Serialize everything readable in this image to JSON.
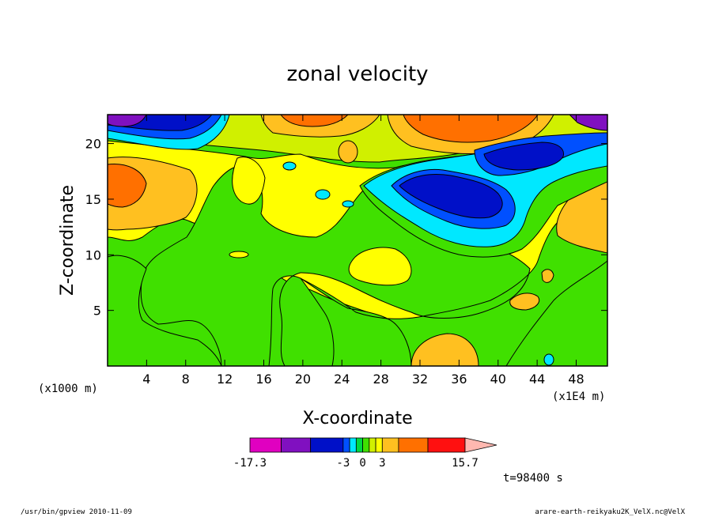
{
  "chart_data": {
    "type": "heatmap",
    "title": "zonal velocity",
    "xlabel": "X-coordinate",
    "ylabel": "Z-coordinate",
    "x_unit": "(x1E4 m)",
    "y_unit": "(x1000 m)",
    "xlim": [
      0,
      51.2
    ],
    "ylim": [
      0,
      22.6
    ],
    "x_ticks": [
      "4",
      "8",
      "12",
      "16",
      "20",
      "24",
      "28",
      "32",
      "36",
      "40",
      "44",
      "48"
    ],
    "y_ticks": [
      "5",
      "10",
      "15",
      "20"
    ],
    "grid": false,
    "colorbar": {
      "tick_labels": [
        "-17.3",
        "-3",
        "0",
        "3",
        "15.7"
      ],
      "levels": [
        -17.3,
        -12.5,
        -8.0,
        -3.0,
        -2.0,
        -1.0,
        0.0,
        1.0,
        2.0,
        3.0,
        5.5,
        10.0,
        15.7
      ],
      "colors": [
        "#e000c0",
        "#8010c0",
        "#0010c8",
        "#0050ff",
        "#00e8ff",
        "#00d840",
        "#40e000",
        "#d0f000",
        "#ffff00",
        "#ffc020",
        "#ff7000",
        "#ff1010",
        "#ff8070",
        "#ffb8b0"
      ]
    },
    "time_label": "t=98400 s"
  },
  "footer": {
    "left": "/usr/bin/gpview   2010-11-09",
    "right": "arare-earth-reikyaku2K_VelX.nc@VelX"
  },
  "colors": {
    "frame": "#000000",
    "background": "#ffffff"
  }
}
